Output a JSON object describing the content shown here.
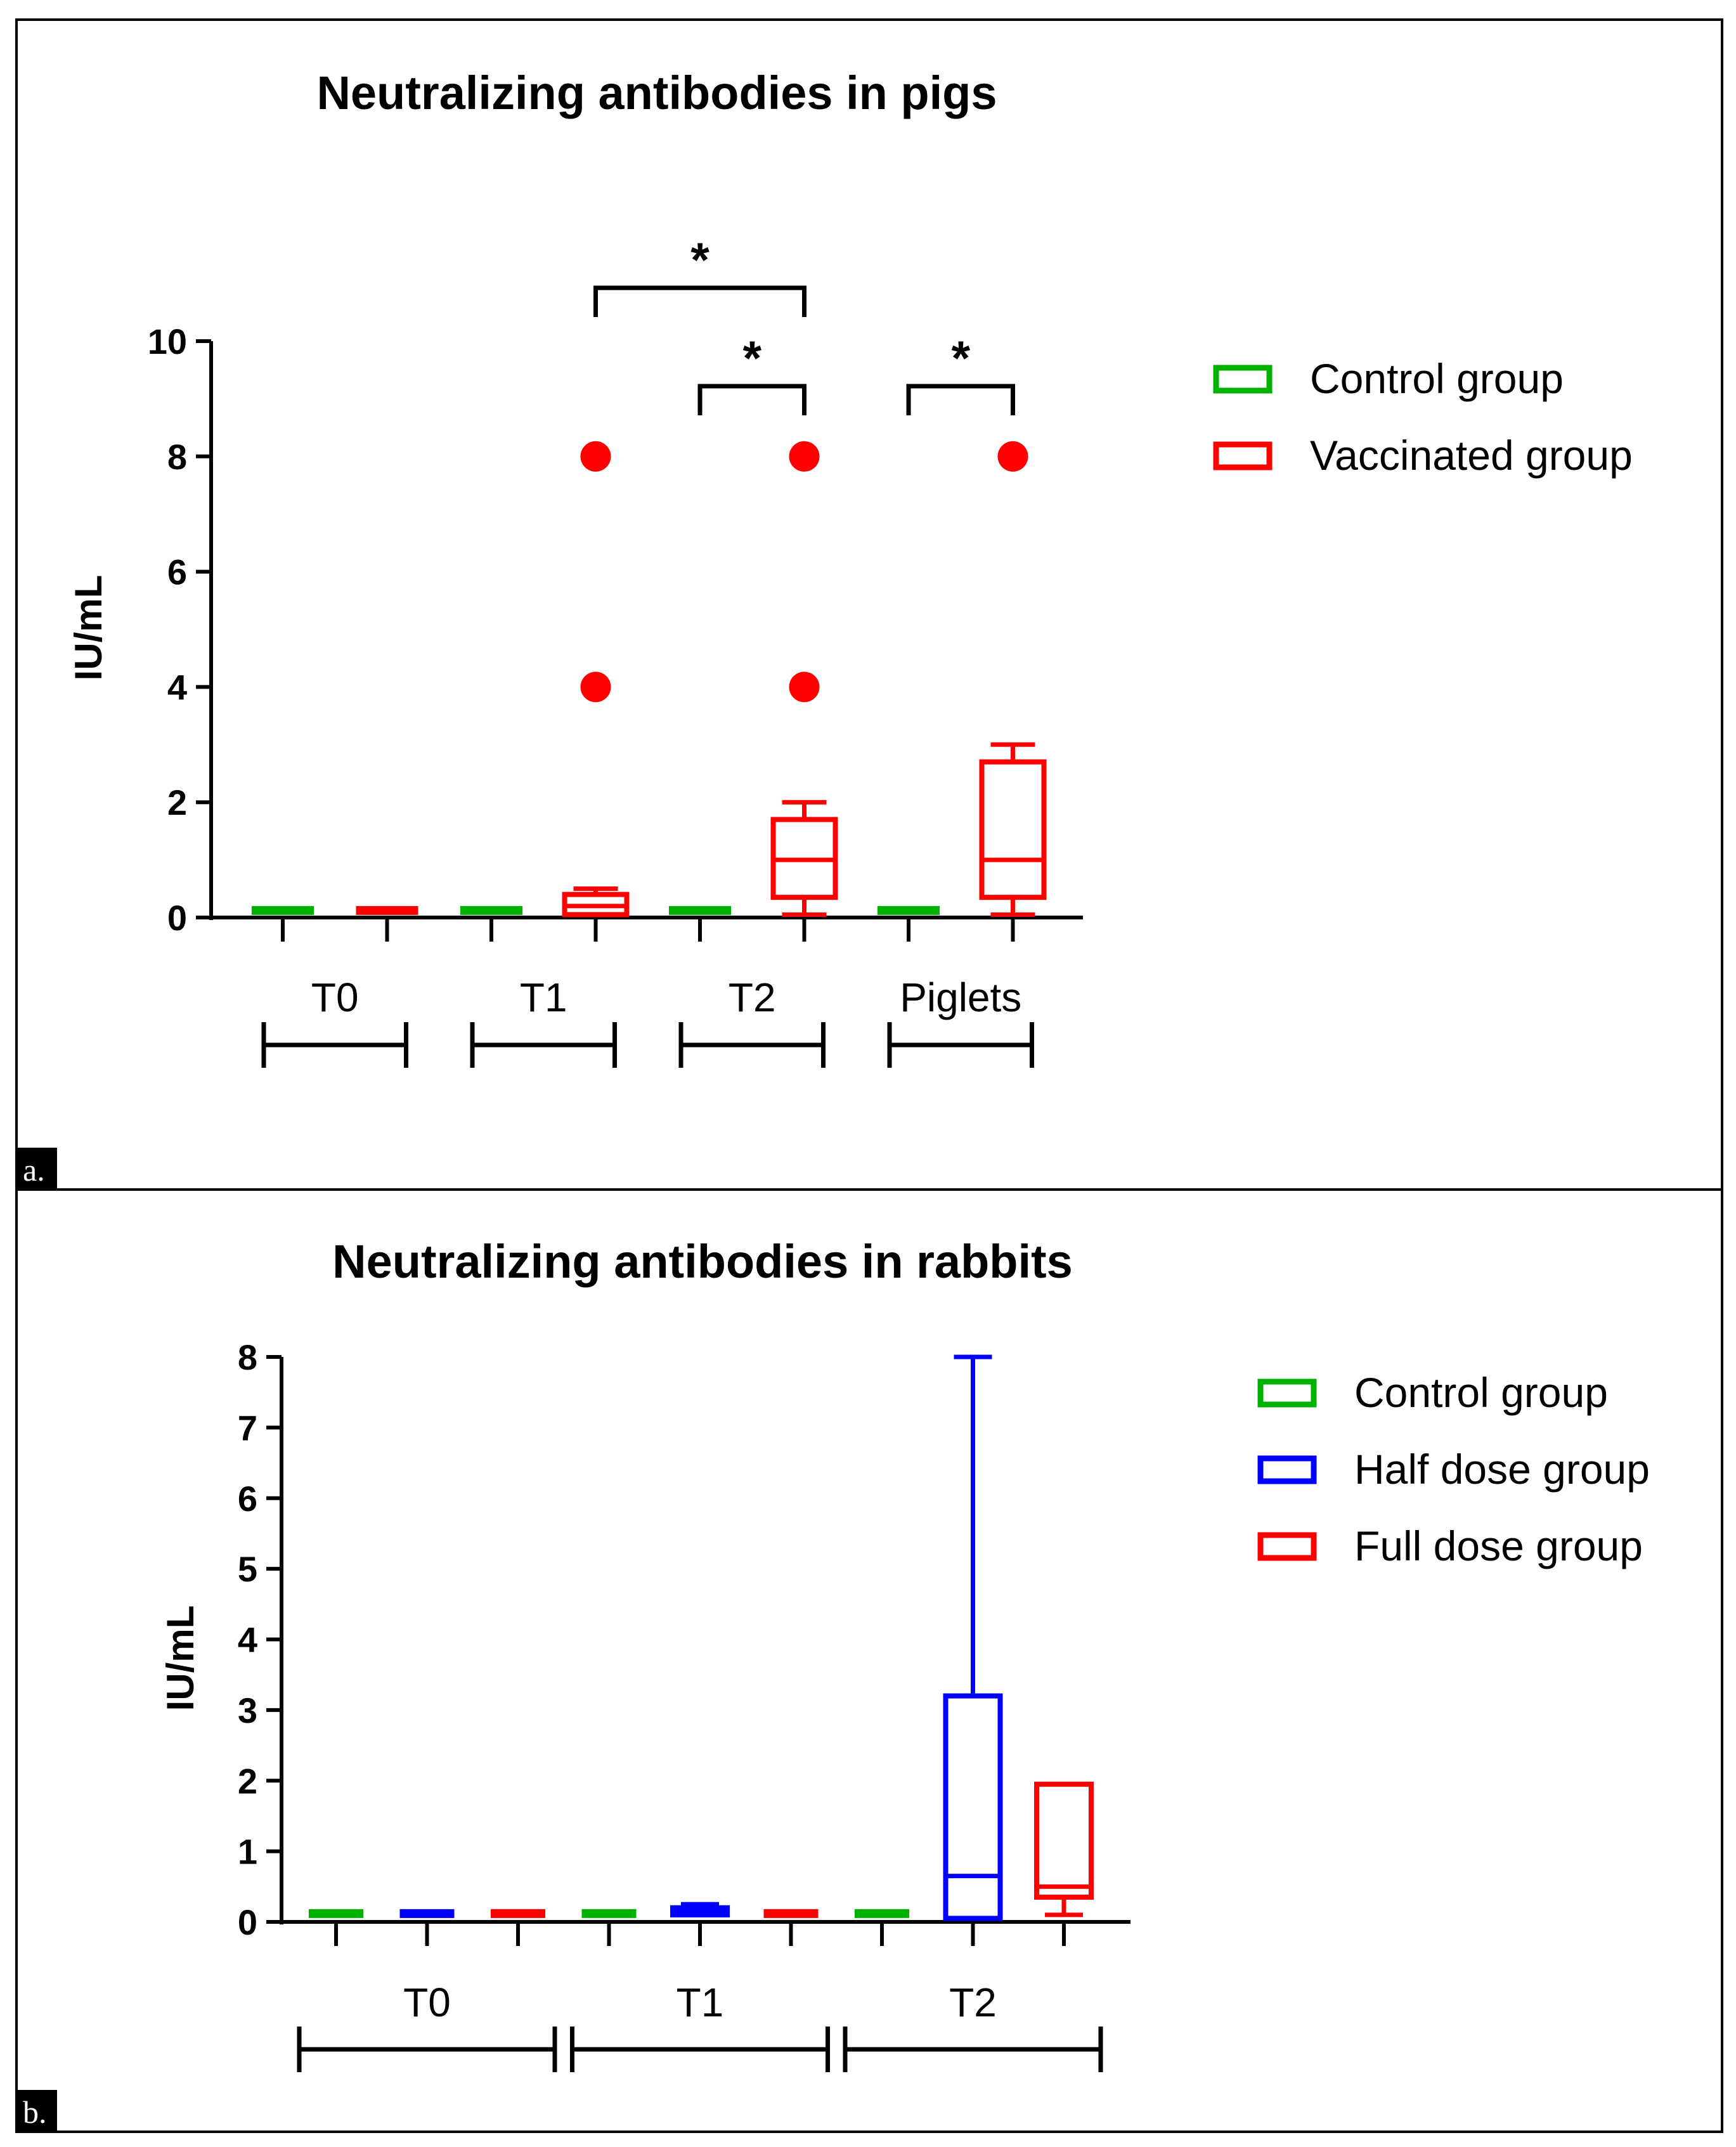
{
  "chart_data": [
    {
      "panel": "a.",
      "type": "boxplot",
      "title": "Neutralizing antibodies in pigs",
      "ylabel": "IU/mL",
      "xlabel": "",
      "ylim": [
        0,
        10
      ],
      "yticks": [
        "0",
        "2",
        "4",
        "6",
        "8",
        "10"
      ],
      "time_groups": [
        "T0",
        "T1",
        "T2",
        "Piglets"
      ],
      "legend": [
        {
          "name": "Control group",
          "color": "#00b200"
        },
        {
          "name": "Vaccinated group",
          "color": "#ff0000"
        }
      ],
      "boxes": [
        {
          "group": "T0",
          "series": "Control group",
          "color": "#00b200",
          "min": 0.1,
          "q1": 0.1,
          "median": 0.1,
          "q3": 0.1,
          "max": 0.1,
          "outliers": []
        },
        {
          "group": "T0",
          "series": "Vaccinated group",
          "color": "#ff0000",
          "min": 0.1,
          "q1": 0.1,
          "median": 0.1,
          "q3": 0.1,
          "max": 0.1,
          "outliers": []
        },
        {
          "group": "T1",
          "series": "Control group",
          "color": "#00b200",
          "min": 0.1,
          "q1": 0.1,
          "median": 0.1,
          "q3": 0.1,
          "max": 0.1,
          "outliers": []
        },
        {
          "group": "T1",
          "series": "Vaccinated group",
          "color": "#ff0000",
          "min": 0.05,
          "q1": 0.05,
          "median": 0.2,
          "q3": 0.4,
          "max": 0.5,
          "outliers": [
            8,
            4
          ]
        },
        {
          "group": "T2",
          "series": "Control group",
          "color": "#00b200",
          "min": 0.1,
          "q1": 0.1,
          "median": 0.1,
          "q3": 0.1,
          "max": 0.1,
          "outliers": []
        },
        {
          "group": "T2",
          "series": "Vaccinated group",
          "color": "#ff0000",
          "min": 0.05,
          "q1": 0.35,
          "median": 1.0,
          "q3": 1.7,
          "max": 2.0,
          "outliers": [
            8,
            4
          ]
        },
        {
          "group": "Piglets",
          "series": "Control group",
          "color": "#00b200",
          "min": 0.1,
          "q1": 0.1,
          "median": 0.1,
          "q3": 0.1,
          "max": 0.1,
          "outliers": []
        },
        {
          "group": "Piglets",
          "series": "Vaccinated group",
          "color": "#ff0000",
          "min": 0.05,
          "q1": 0.35,
          "median": 1.0,
          "q3": 2.7,
          "max": 3.0,
          "outliers": [
            8
          ]
        }
      ],
      "significance": [
        {
          "from": "T1 Vaccinated group",
          "to": "T2 Vaccinated group",
          "label": "*"
        },
        {
          "from": "T2 Control group",
          "to": "T2 Vaccinated group",
          "label": "*"
        },
        {
          "from": "Piglets Control group",
          "to": "Piglets Vaccinated group",
          "label": "*"
        }
      ]
    },
    {
      "panel": "b.",
      "type": "boxplot",
      "title": "Neutralizing antibodies in rabbits",
      "ylabel": "IU/mL",
      "xlabel": "",
      "ylim": [
        0,
        8
      ],
      "yticks": [
        "0",
        "1",
        "2",
        "3",
        "4",
        "5",
        "6",
        "7",
        "8"
      ],
      "time_groups": [
        "T0",
        "T1",
        "T2"
      ],
      "legend": [
        {
          "name": "Control group",
          "color": "#00b200"
        },
        {
          "name": "Half dose group",
          "color": "#0000ff"
        },
        {
          "name": "Full dose group",
          "color": "#ff0000"
        }
      ],
      "boxes": [
        {
          "group": "T0",
          "series": "Control group",
          "color": "#00b200",
          "min": 0.1,
          "q1": 0.1,
          "median": 0.1,
          "q3": 0.1,
          "max": 0.1,
          "outliers": []
        },
        {
          "group": "T0",
          "series": "Half dose group",
          "color": "#0000ff",
          "min": 0.1,
          "q1": 0.1,
          "median": 0.1,
          "q3": 0.1,
          "max": 0.1,
          "outliers": []
        },
        {
          "group": "T0",
          "series": "Full dose group",
          "color": "#ff0000",
          "min": 0.1,
          "q1": 0.1,
          "median": 0.1,
          "q3": 0.1,
          "max": 0.1,
          "outliers": []
        },
        {
          "group": "T1",
          "series": "Control group",
          "color": "#00b200",
          "min": 0.1,
          "q1": 0.1,
          "median": 0.1,
          "q3": 0.1,
          "max": 0.1,
          "outliers": []
        },
        {
          "group": "T1",
          "series": "Half dose group",
          "color": "#0000ff",
          "min": 0.1,
          "q1": 0.1,
          "median": 0.15,
          "q3": 0.2,
          "max": 0.25,
          "outliers": []
        },
        {
          "group": "T1",
          "series": "Full dose group",
          "color": "#ff0000",
          "min": 0.1,
          "q1": 0.1,
          "median": 0.1,
          "q3": 0.1,
          "max": 0.1,
          "outliers": []
        },
        {
          "group": "T2",
          "series": "Control group",
          "color": "#00b200",
          "min": 0.1,
          "q1": 0.1,
          "median": 0.1,
          "q3": 0.1,
          "max": 0.1,
          "outliers": []
        },
        {
          "group": "T2",
          "series": "Half dose group",
          "color": "#0000ff",
          "min": 0.05,
          "q1": 0.05,
          "median": 0.65,
          "q3": 3.2,
          "max": 8.0,
          "outliers": []
        },
        {
          "group": "T2",
          "series": "Full dose group",
          "color": "#ff0000",
          "min": 0.1,
          "q1": 0.35,
          "median": 0.5,
          "q3": 1.95,
          "max": 1.95,
          "outliers": []
        }
      ],
      "significance": []
    }
  ]
}
